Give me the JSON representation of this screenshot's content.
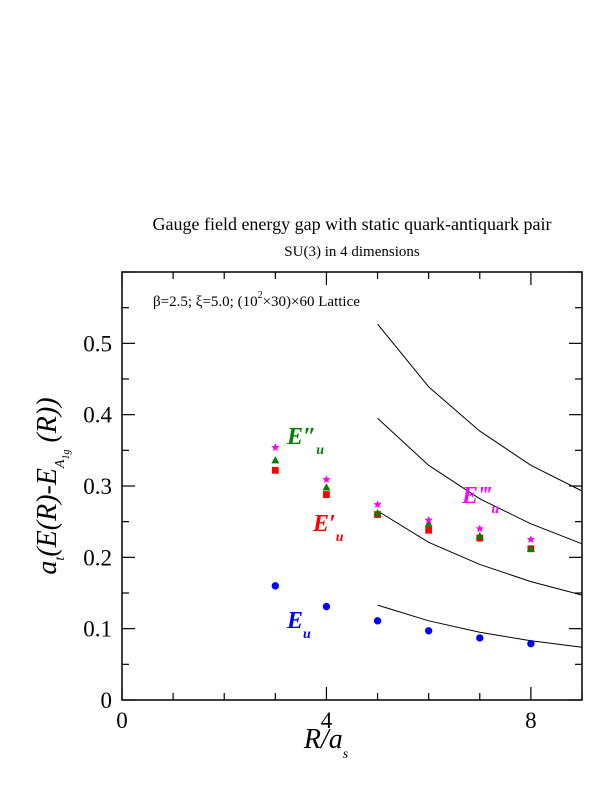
{
  "chart_data": {
    "type": "scatter",
    "title": "Gauge field energy gap with static quark-antiquark pair",
    "subtitle": "SU(3) in 4 dimensions",
    "annotation": {
      "parts": [
        "β=2.5;  ξ=5.0; (10",
        "2",
        "×30)×60 Lattice"
      ]
    },
    "xlabel": {
      "main": "R/a",
      "sub": "s"
    },
    "ylabel": {
      "parts": [
        "a",
        "t",
        "(E(R)-E",
        "A",
        "1g",
        " (R))"
      ]
    },
    "xlim": [
      0,
      9
    ],
    "ylim": [
      0,
      0.6
    ],
    "x_ticks": [
      "0",
      "4",
      "8"
    ],
    "y_ticks": [
      "0",
      "0.1",
      "0.2",
      "0.3",
      "0.4",
      "0.5"
    ],
    "grid": false,
    "series": [
      {
        "name": "E_u",
        "label": {
          "main": "E",
          "prime": "",
          "sub": "u"
        },
        "color": "#0000ff",
        "marker": "circle",
        "x": [
          3,
          4,
          5,
          6,
          7,
          8
        ],
        "y": [
          0.16,
          0.131,
          0.111,
          0.097,
          0.087,
          0.079
        ]
      },
      {
        "name": "E'_u",
        "label": {
          "main": "E",
          "prime": "′",
          "sub": "u"
        },
        "color": "#ff0000",
        "marker": "square",
        "x": [
          3,
          4,
          5,
          6,
          7,
          8
        ],
        "y": [
          0.322,
          0.288,
          0.26,
          0.238,
          0.227,
          0.212
        ]
      },
      {
        "name": "E''_u",
        "label": {
          "main": "E",
          "prime": "″",
          "sub": "u"
        },
        "color": "#008000",
        "marker": "triangle",
        "x": [
          3,
          4,
          5,
          6,
          7,
          8
        ],
        "y": [
          0.336,
          0.298,
          0.262,
          0.247,
          0.23,
          0.212
        ]
      },
      {
        "name": "E'''_u",
        "label": {
          "main": "E",
          "prime": "‴",
          "sub": "u"
        },
        "color": "#ff00ff",
        "marker": "star",
        "x": [
          3,
          4,
          5,
          6,
          7,
          8
        ],
        "y": [
          0.354,
          0.309,
          0.274,
          0.252,
          0.24,
          0.225
        ]
      }
    ],
    "curves": [
      {
        "x": [
          5,
          6,
          7,
          8,
          9
        ],
        "y": [
          0.133,
          0.111,
          0.095,
          0.083,
          0.074
        ]
      },
      {
        "x": [
          5,
          6,
          7,
          8,
          9
        ],
        "y": [
          0.265,
          0.221,
          0.19,
          0.166,
          0.147
        ]
      },
      {
        "x": [
          5,
          6,
          7,
          8,
          9
        ],
        "y": [
          0.395,
          0.329,
          0.282,
          0.247,
          0.219
        ]
      },
      {
        "x": [
          5,
          6,
          7,
          8,
          9
        ],
        "y": [
          0.527,
          0.439,
          0.377,
          0.329,
          0.293
        ]
      }
    ]
  }
}
